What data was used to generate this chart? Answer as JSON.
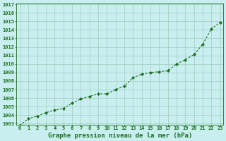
{
  "x": [
    0,
    1,
    2,
    3,
    4,
    5,
    6,
    7,
    8,
    9,
    10,
    11,
    12,
    13,
    14,
    15,
    16,
    17,
    18,
    19,
    20,
    21,
    22,
    23
  ],
  "y": [
    1002.8,
    1003.6,
    1003.9,
    1004.3,
    1004.6,
    1004.8,
    1005.4,
    1005.9,
    1006.2,
    1006.5,
    1006.5,
    1007.0,
    1007.4,
    1008.4,
    1008.8,
    1009.0,
    1009.1,
    1009.2,
    1010.0,
    1010.5,
    1011.1,
    1012.3,
    1014.1,
    1014.9
  ],
  "line_color": "#1a6e1a",
  "marker_color": "#1a6e1a",
  "bg_color": "#c8eef0",
  "grid_color": "#a0ccbb",
  "xlabel": "Graphe pression niveau de la mer (hPa)",
  "ylim_min": 1003,
  "ylim_max": 1017,
  "xlim_min": -0.4,
  "xlim_max": 23.4,
  "yticks": [
    1003,
    1004,
    1005,
    1006,
    1007,
    1008,
    1009,
    1010,
    1011,
    1012,
    1013,
    1014,
    1015,
    1016,
    1017
  ],
  "xticks": [
    0,
    1,
    2,
    3,
    4,
    5,
    6,
    7,
    8,
    9,
    10,
    11,
    12,
    13,
    14,
    15,
    16,
    17,
    18,
    19,
    20,
    21,
    22,
    23
  ],
  "title_fontsize": 6.5,
  "tick_fontsize": 5.0,
  "title_color": "#1a6e1a",
  "tick_color": "#1a6e1a",
  "spine_color": "#1a6e1a"
}
